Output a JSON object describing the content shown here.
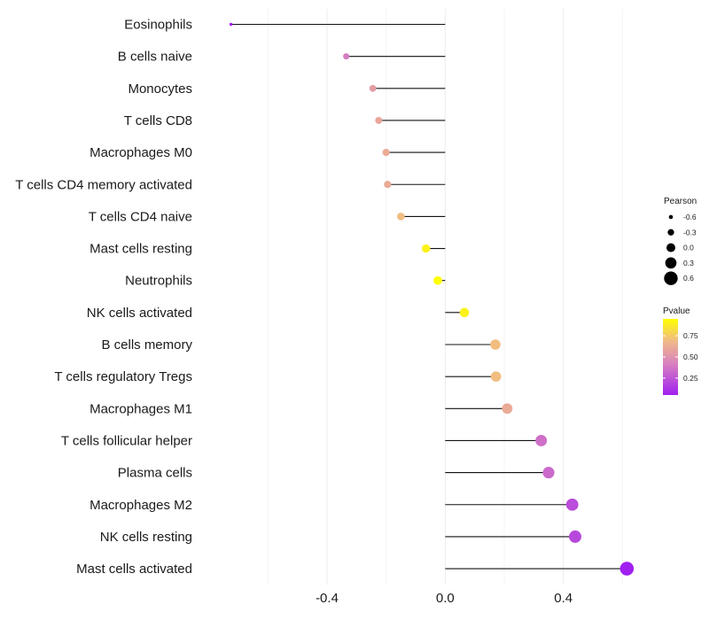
{
  "chart_data": {
    "type": "lollipop",
    "title": "",
    "xlabel": "",
    "ylabel": "",
    "categories": [
      "Eosinophils",
      "B cells naive",
      "Monocytes",
      "T cells CD8",
      "Macrophages M0",
      "T cells CD4 memory activated",
      "T cells CD4 naive",
      "Mast cells resting",
      "Neutrophils",
      "NK cells activated",
      "B cells memory",
      "T cells regulatory  Tregs ",
      "Macrophages M1",
      "T cells follicular helper",
      "Plasma cells",
      "Macrophages M2",
      "NK cells resting",
      "Mast cells activated"
    ],
    "pearson": [
      -0.725,
      -0.335,
      -0.245,
      -0.225,
      -0.2,
      -0.195,
      -0.15,
      -0.065,
      -0.025,
      0.065,
      0.17,
      0.172,
      0.21,
      0.325,
      0.35,
      0.43,
      0.44,
      0.615
    ],
    "pvalue": [
      0.02,
      0.4,
      0.55,
      0.6,
      0.62,
      0.62,
      0.7,
      0.9,
      0.95,
      0.9,
      0.7,
      0.7,
      0.62,
      0.35,
      0.33,
      0.22,
      0.2,
      0.05
    ],
    "xlim": [
      -0.82,
      0.68
    ],
    "xticks": [
      -0.4,
      0.0,
      0.4
    ],
    "xtick_labels": [
      "-0.4",
      "0.0",
      "0.4"
    ],
    "grid": true,
    "size_legend": {
      "title": "Pearson",
      "values": [
        -0.6,
        -0.3,
        0.0,
        0.3,
        0.6
      ],
      "labels": [
        "-0.6",
        "-0.3",
        "0.0",
        "0.3",
        "0.6"
      ]
    },
    "color_legend": {
      "title": "Pvalue",
      "range": [
        0.05,
        0.95
      ],
      "ticks": [
        0.75,
        0.5,
        0.25
      ],
      "tick_labels": [
        "0.75",
        "0.50",
        "0.25"
      ],
      "low_color": "#a020f0",
      "mid_color": "#d77fc0",
      "mid2_color": "#f0b88a",
      "high_color": "#ffff00"
    },
    "legend_position": "right"
  }
}
